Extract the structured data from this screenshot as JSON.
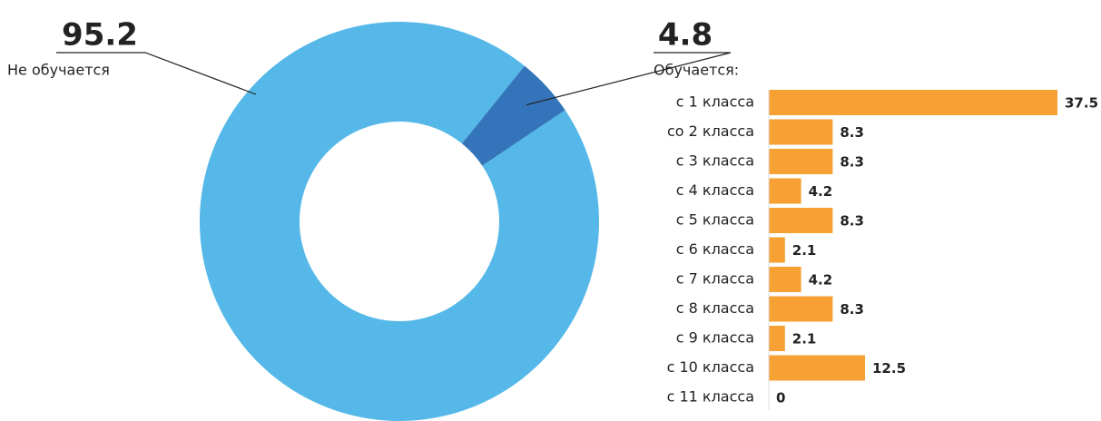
{
  "chart_data": [
    {
      "type": "donut",
      "categories": [
        "Не обучается",
        null
      ],
      "values": [
        95.2,
        4.8
      ],
      "colors": [
        "#55b8e8",
        "#3474bb"
      ]
    },
    {
      "type": "barh",
      "title": "Обучается:",
      "categories": [
        "с 1 класса",
        "со 2 класса",
        "с 3 класса",
        "с 4 класса",
        "с 5 класса",
        "с 6 класса",
        "с 7 класса",
        "с 8 класса",
        "с 9 класса",
        "с 10 класса",
        "с 11 класса"
      ],
      "values": [
        37.5,
        8.3,
        8.3,
        4.2,
        8.3,
        2.1,
        4.2,
        8.3,
        2.1,
        12.5,
        0
      ],
      "color": "#f7a033"
    }
  ]
}
